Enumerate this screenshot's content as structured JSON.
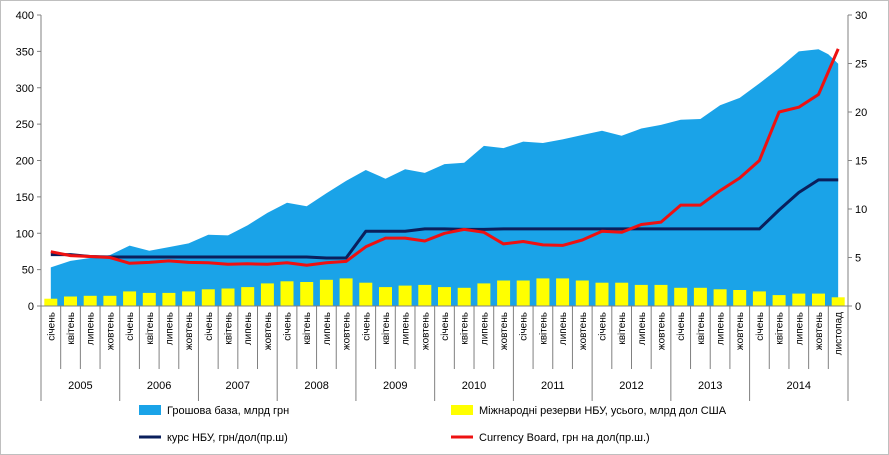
{
  "chart_data": {
    "type": "area",
    "title": "",
    "categories": [
      "січень",
      "квітень",
      "липень",
      "жовтень",
      "січень",
      "квітень",
      "липень",
      "жовтень",
      "січень",
      "квітень",
      "липень",
      "жовтень",
      "січень",
      "квітень",
      "липень",
      "жовтень",
      "січень",
      "квітень",
      "липень",
      "жовтень",
      "січень",
      "квітень",
      "липень",
      "жовтень",
      "січень",
      "квітень",
      "липень",
      "жовтень",
      "січень",
      "квітень",
      "липень",
      "жовтень",
      "січень",
      "квітень",
      "липень",
      "жовтень",
      "січень",
      "квітень",
      "липень",
      "жовтень",
      "листопад"
    ],
    "years": [
      {
        "label": "2005",
        "count": 4
      },
      {
        "label": "2006",
        "count": 4
      },
      {
        "label": "2007",
        "count": 4
      },
      {
        "label": "2008",
        "count": 4
      },
      {
        "label": "2009",
        "count": 4
      },
      {
        "label": "2010",
        "count": 4
      },
      {
        "label": "2011",
        "count": 4
      },
      {
        "label": "2012",
        "count": 4
      },
      {
        "label": "2013",
        "count": 4
      },
      {
        "label": "2014",
        "count": 5
      }
    ],
    "y_left": {
      "min": 0,
      "max": 400,
      "step": 50,
      "ticks": [
        "0",
        "50",
        "100",
        "150",
        "200",
        "250",
        "300",
        "350",
        "400"
      ]
    },
    "y_right": {
      "min": 0,
      "max": 30,
      "step": 5,
      "ticks": [
        "0",
        "5",
        "10",
        "15",
        "20",
        "25",
        "30"
      ]
    },
    "grid": false,
    "legend_position": "bottom",
    "series": [
      {
        "name": "Грошова база, млрд грн",
        "type": "area",
        "axis": "left",
        "color": "#1aa3e8",
        "values": [
          [
            0,
            53
          ],
          [
            1,
            62
          ],
          [
            2,
            66
          ],
          [
            3,
            70
          ],
          [
            4,
            83
          ],
          [
            5,
            76
          ],
          [
            6,
            81
          ],
          [
            7,
            86
          ],
          [
            8,
            98
          ],
          [
            9,
            97
          ],
          [
            10,
            111
          ],
          [
            11,
            128
          ],
          [
            12,
            142
          ],
          [
            13,
            137
          ],
          [
            14,
            155
          ],
          [
            15,
            172
          ],
          [
            16,
            187
          ],
          [
            17,
            175
          ],
          [
            18,
            188
          ],
          [
            19,
            183
          ],
          [
            20,
            195
          ],
          [
            21,
            197
          ],
          [
            22,
            220
          ],
          [
            23,
            217
          ],
          [
            24,
            226
          ],
          [
            25,
            224
          ],
          [
            26,
            229
          ],
          [
            27,
            235
          ],
          [
            28,
            241
          ],
          [
            29,
            234
          ],
          [
            30,
            244
          ],
          [
            31,
            249
          ],
          [
            32,
            256
          ],
          [
            33,
            257
          ],
          [
            34,
            276
          ],
          [
            35,
            286
          ],
          [
            36,
            306
          ],
          [
            37,
            327
          ],
          [
            38,
            350
          ],
          [
            39,
            353
          ],
          [
            39.5,
            346
          ],
          [
            40,
            333
          ]
        ]
      },
      {
        "name": "Міжнародні резерви НБУ, усього, млрд дол США",
        "type": "bar",
        "axis": "left",
        "color": "#ffff00",
        "values": [
          10,
          13,
          14,
          14,
          20,
          18,
          18,
          20,
          23,
          24,
          26,
          31,
          34,
          33,
          36,
          38,
          32,
          26,
          28,
          29,
          26,
          25,
          31,
          35,
          35,
          38,
          38,
          35,
          32,
          32,
          29,
          29,
          25,
          25,
          23,
          22,
          20,
          15,
          17,
          17,
          12
        ]
      },
      {
        "name": "курс НБУ, грн/дол(пр.ш)",
        "type": "line",
        "axis": "right",
        "color": "#0a1f5c",
        "values": [
          5.3,
          5.3,
          5.1,
          5.05,
          5.05,
          5.05,
          5.05,
          5.05,
          5.05,
          5.05,
          5.05,
          5.05,
          5.05,
          5.05,
          4.95,
          4.95,
          7.7,
          7.7,
          7.7,
          7.95,
          7.95,
          7.9,
          7.9,
          7.95,
          7.95,
          7.95,
          7.95,
          7.95,
          7.95,
          7.95,
          7.95,
          7.95,
          7.95,
          7.95,
          7.95,
          7.95,
          7.95,
          9.9,
          11.7,
          13,
          13
        ]
      },
      {
        "name": "Currency Board, грн на дол(пр.ш.)",
        "type": "line",
        "axis": "right",
        "color": "#ee1111",
        "values": [
          5.6,
          5.2,
          5.1,
          5,
          4.4,
          4.5,
          4.65,
          4.5,
          4.45,
          4.3,
          4.35,
          4.3,
          4.45,
          4.2,
          4.45,
          4.6,
          6.1,
          7,
          7,
          6.7,
          7.5,
          7.9,
          7.6,
          6.4,
          6.65,
          6.3,
          6.25,
          6.8,
          7.7,
          7.6,
          8.4,
          8.65,
          10.4,
          10.4,
          11.9,
          13.2,
          15,
          20,
          20.5,
          21.8,
          26.5
        ]
      }
    ]
  }
}
